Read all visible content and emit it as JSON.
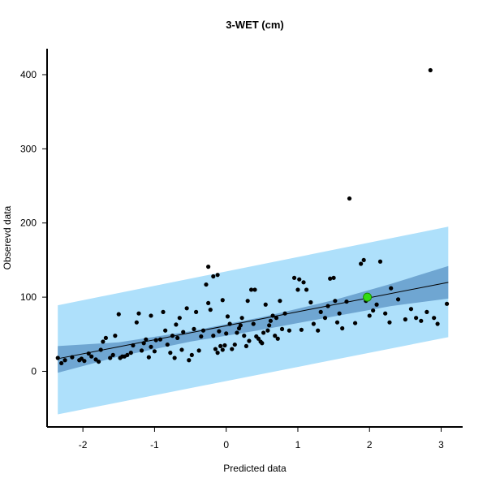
{
  "chart_data": {
    "type": "scatter",
    "title": "3-WET (cm)",
    "xlabel": "Predicted data",
    "ylabel": "Obserevd data",
    "xlim": [
      -2.5,
      3.3
    ],
    "ylim": [
      -75,
      435
    ],
    "xticks": [
      -2,
      -1,
      0,
      1,
      2,
      3
    ],
    "yticks": [
      0,
      100,
      200,
      300,
      400
    ],
    "grid": false,
    "colors": {
      "prediction_band": "#aee0fb",
      "confidence_band": "#6fa6d2",
      "fit_line": "#000000",
      "points": "#000000",
      "highlight": "#33dd11"
    },
    "fit_line": {
      "x": [
        -2.35,
        3.1
      ],
      "y": [
        17,
        120
      ]
    },
    "confidence_band": {
      "x": [
        -2.35,
        -1.5,
        -0.5,
        0.5,
        1.5,
        2.3,
        3.1
      ],
      "lower": [
        -2,
        20,
        40,
        56,
        74,
        88,
        98
      ],
      "upper": [
        34,
        39,
        54,
        73,
        96,
        118,
        142
      ]
    },
    "prediction_band": {
      "x": [
        -2.35,
        3.1
      ],
      "lower": [
        -58,
        46
      ],
      "upper": [
        89,
        195
      ]
    },
    "highlight_point": {
      "x": 1.97,
      "y": 100
    },
    "points": [
      [
        -2.35,
        18
      ],
      [
        -2.3,
        11
      ],
      [
        -2.25,
        15
      ],
      [
        -2.15,
        19
      ],
      [
        -2.05,
        15
      ],
      [
        -2.02,
        17
      ],
      [
        -1.98,
        14
      ],
      [
        -1.92,
        24
      ],
      [
        -1.88,
        20
      ],
      [
        -1.82,
        16
      ],
      [
        -1.78,
        13
      ],
      [
        -1.75,
        29
      ],
      [
        -1.72,
        40
      ],
      [
        -1.68,
        45
      ],
      [
        -1.62,
        18
      ],
      [
        -1.58,
        22
      ],
      [
        -1.55,
        48
      ],
      [
        -1.48,
        18
      ],
      [
        -1.45,
        20
      ],
      [
        -1.42,
        20
      ],
      [
        -1.38,
        22
      ],
      [
        -1.33,
        25
      ],
      [
        -1.5,
        77
      ],
      [
        -1.3,
        35
      ],
      [
        -1.25,
        66
      ],
      [
        -1.22,
        78
      ],
      [
        -1.18,
        28
      ],
      [
        -1.15,
        38
      ],
      [
        -1.12,
        43
      ],
      [
        -1.08,
        19
      ],
      [
        -1.05,
        33
      ],
      [
        -1.0,
        27
      ],
      [
        -1.05,
        75
      ],
      [
        -0.98,
        42
      ],
      [
        -0.92,
        43
      ],
      [
        -0.88,
        80
      ],
      [
        -0.85,
        55
      ],
      [
        -0.82,
        36
      ],
      [
        -0.78,
        25
      ],
      [
        -0.75,
        48
      ],
      [
        -0.72,
        18
      ],
      [
        -0.7,
        63
      ],
      [
        -0.68,
        45
      ],
      [
        -0.65,
        72
      ],
      [
        -0.62,
        29
      ],
      [
        -0.6,
        53
      ],
      [
        -0.55,
        85
      ],
      [
        -0.52,
        15
      ],
      [
        -0.48,
        22
      ],
      [
        -0.45,
        57
      ],
      [
        -0.42,
        80
      ],
      [
        -0.38,
        28
      ],
      [
        -0.35,
        47
      ],
      [
        -0.32,
        55
      ],
      [
        -0.28,
        117
      ],
      [
        -0.25,
        141
      ],
      [
        -0.22,
        83
      ],
      [
        -0.18,
        48
      ],
      [
        -0.15,
        30
      ],
      [
        -0.12,
        25
      ],
      [
        -0.1,
        54
      ],
      [
        -0.08,
        34
      ],
      [
        -0.05,
        29
      ],
      [
        -0.02,
        35
      ],
      [
        0.0,
        51
      ],
      [
        -0.25,
        92
      ],
      [
        -0.18,
        128
      ],
      [
        -0.12,
        130
      ],
      [
        -0.05,
        96
      ],
      [
        0.02,
        74
      ],
      [
        0.05,
        64
      ],
      [
        0.08,
        30
      ],
      [
        0.12,
        36
      ],
      [
        0.15,
        52
      ],
      [
        0.18,
        58
      ],
      [
        0.2,
        62
      ],
      [
        0.22,
        72
      ],
      [
        0.25,
        48
      ],
      [
        0.28,
        34
      ],
      [
        0.3,
        95
      ],
      [
        0.32,
        41
      ],
      [
        0.35,
        110
      ],
      [
        0.38,
        64
      ],
      [
        0.4,
        110
      ],
      [
        0.42,
        47
      ],
      [
        0.45,
        44
      ],
      [
        0.48,
        40
      ],
      [
        0.5,
        38
      ],
      [
        0.52,
        52
      ],
      [
        0.55,
        90
      ],
      [
        0.58,
        55
      ],
      [
        0.6,
        62
      ],
      [
        0.62,
        68
      ],
      [
        0.65,
        75
      ],
      [
        0.68,
        48
      ],
      [
        0.7,
        72
      ],
      [
        0.72,
        44
      ],
      [
        0.75,
        95
      ],
      [
        0.78,
        57
      ],
      [
        0.82,
        78
      ],
      [
        0.88,
        55
      ],
      [
        0.95,
        126
      ],
      [
        1.0,
        110
      ],
      [
        1.02,
        124
      ],
      [
        1.05,
        56
      ],
      [
        1.08,
        120
      ],
      [
        1.12,
        110
      ],
      [
        1.18,
        93
      ],
      [
        1.22,
        64
      ],
      [
        1.28,
        55
      ],
      [
        1.32,
        80
      ],
      [
        1.38,
        72
      ],
      [
        1.42,
        88
      ],
      [
        1.45,
        125
      ],
      [
        1.5,
        126
      ],
      [
        1.52,
        95
      ],
      [
        1.55,
        66
      ],
      [
        1.58,
        78
      ],
      [
        1.62,
        58
      ],
      [
        1.68,
        94
      ],
      [
        1.72,
        233
      ],
      [
        1.8,
        65
      ],
      [
        1.88,
        145
      ],
      [
        1.92,
        150
      ],
      [
        1.95,
        95
      ],
      [
        2.0,
        75
      ],
      [
        2.05,
        82
      ],
      [
        2.1,
        90
      ],
      [
        2.15,
        148
      ],
      [
        2.22,
        78
      ],
      [
        2.28,
        66
      ],
      [
        2.3,
        112
      ],
      [
        2.4,
        97
      ],
      [
        2.5,
        70
      ],
      [
        2.58,
        84
      ],
      [
        2.65,
        72
      ],
      [
        2.72,
        68
      ],
      [
        2.8,
        80
      ],
      [
        2.85,
        406
      ],
      [
        2.9,
        72
      ],
      [
        2.95,
        64
      ],
      [
        3.08,
        91
      ]
    ]
  }
}
